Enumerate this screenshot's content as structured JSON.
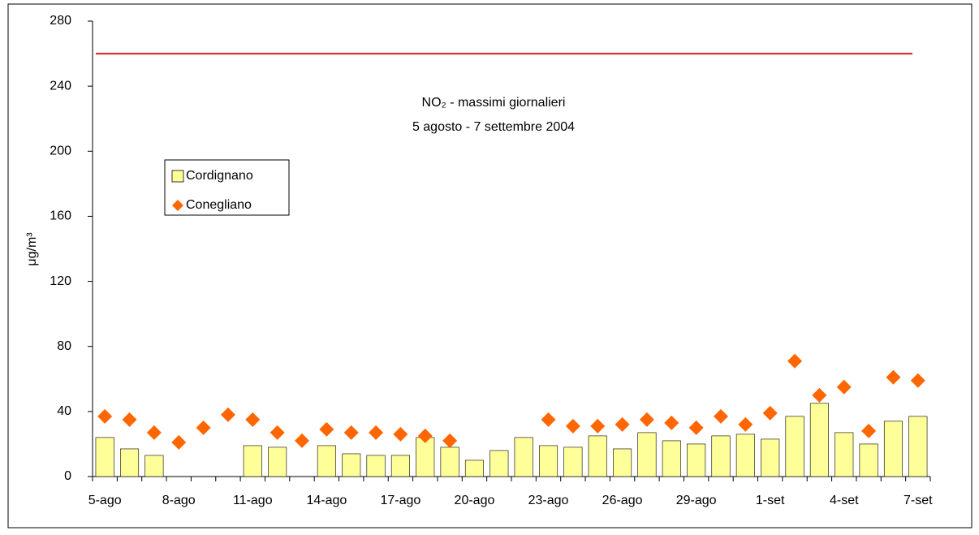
{
  "chart_data": {
    "type": "bar_scatter",
    "title": [
      "NO₂ - massimi giornalieri",
      "5 agosto - 7 settembre 2004"
    ],
    "y_label": "μg/m³",
    "categories": [
      "5-ago",
      null,
      null,
      "8-ago",
      null,
      null,
      "11-ago",
      null,
      null,
      "14-ago",
      null,
      null,
      "17-ago",
      null,
      null,
      "20-ago",
      null,
      null,
      "23-ago",
      null,
      null,
      "26-ago",
      null,
      null,
      "29-ago",
      null,
      null,
      "1-set",
      null,
      null,
      "4-set",
      null,
      null,
      "7-set"
    ],
    "series": [
      {
        "name": "Cordignano",
        "kind": "bar",
        "color": "#ffff99",
        "values": [
          24,
          17,
          13,
          null,
          null,
          null,
          19,
          18,
          null,
          19,
          14,
          13,
          13,
          24,
          18,
          10,
          16,
          24,
          19,
          18,
          25,
          17,
          27,
          22,
          20,
          25,
          26,
          23,
          37,
          45,
          27,
          20,
          34,
          37
        ]
      },
      {
        "name": "Conegliano",
        "kind": "diamond",
        "color": "#ff6600",
        "values": [
          37,
          35,
          27,
          21,
          30,
          38,
          35,
          27,
          22,
          29,
          27,
          27,
          26,
          25,
          22,
          null,
          null,
          null,
          35,
          31,
          31,
          32,
          35,
          33,
          30,
          37,
          32,
          39,
          71,
          50,
          55,
          28,
          61,
          59
        ]
      }
    ],
    "limit_line": {
      "value": 260,
      "color": "#e31a1c"
    },
    "ylim": [
      0,
      280
    ],
    "yticks": [
      0,
      40,
      80,
      120,
      160,
      200,
      240,
      280
    ]
  }
}
